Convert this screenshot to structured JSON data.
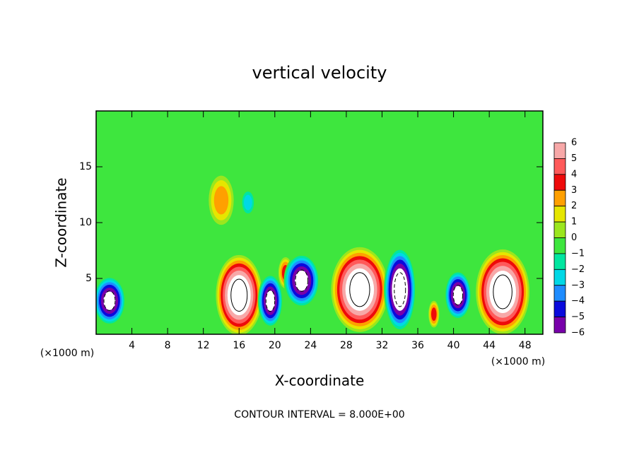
{
  "chart_data": {
    "type": "contourf",
    "title": "vertical velocity",
    "xlabel": "X-coordinate",
    "ylabel": "Z-coordinate",
    "xunit": "(×1000 m)",
    "footer": "CONTOUR INTERVAL = 8.000E+00",
    "xlim": [
      0,
      50
    ],
    "ylim": [
      0,
      20
    ],
    "xticks": [
      4,
      8,
      12,
      16,
      20,
      24,
      28,
      32,
      36,
      40,
      44,
      48
    ],
    "yticks": [
      5,
      10,
      15
    ],
    "colorbar": {
      "levels": [
        6,
        5,
        4,
        3,
        2,
        1,
        0,
        -1,
        -2,
        -3,
        -4,
        -5,
        -6
      ],
      "level_labels": [
        "6",
        "5",
        "4",
        "3",
        "2",
        "1",
        "0",
        "−1",
        "−2",
        "−3",
        "−4",
        "−5",
        "−6"
      ],
      "colors": [
        "#f7a8a8",
        "#ff5a5a",
        "#ee0a0a",
        "#ffa000",
        "#e6e600",
        "#9be61e",
        "#3ee63e",
        "#00e6a0",
        "#00d8e6",
        "#1e8cff",
        "#0a0adc",
        "#7800aa"
      ]
    },
    "features": [
      {
        "x": 1.5,
        "z": 3,
        "rx": 1.8,
        "rz": 2.2,
        "value": -7
      },
      {
        "x": 14,
        "z": 12,
        "rx": 1.4,
        "rz": 2.2,
        "value": 3
      },
      {
        "x": 17,
        "z": 11.8,
        "rx": 0.8,
        "rz": 1.2,
        "value": -3
      },
      {
        "x": 16,
        "z": 3.5,
        "rx": 2.6,
        "rz": 3.6,
        "value": 8
      },
      {
        "x": 19.5,
        "z": 3,
        "rx": 1.4,
        "rz": 2.4,
        "value": -7
      },
      {
        "x": 21.2,
        "z": 5.5,
        "rx": 0.8,
        "rz": 1.4,
        "value": 4
      },
      {
        "x": 23,
        "z": 4.8,
        "rx": 2,
        "rz": 2.4,
        "value": -7
      },
      {
        "x": 29.5,
        "z": 4,
        "rx": 3.2,
        "rz": 3.8,
        "value": 8
      },
      {
        "x": 34,
        "z": 4,
        "rx": 1.8,
        "rz": 3.8,
        "value": -8
      },
      {
        "x": 37.8,
        "z": 1.8,
        "rx": 0.6,
        "rz": 1.2,
        "value": 4
      },
      {
        "x": 40.5,
        "z": 3.5,
        "rx": 1.5,
        "rz": 2.2,
        "value": -7
      },
      {
        "x": 45.5,
        "z": 3.8,
        "rx": 3,
        "rz": 3.8,
        "value": 8
      }
    ]
  }
}
